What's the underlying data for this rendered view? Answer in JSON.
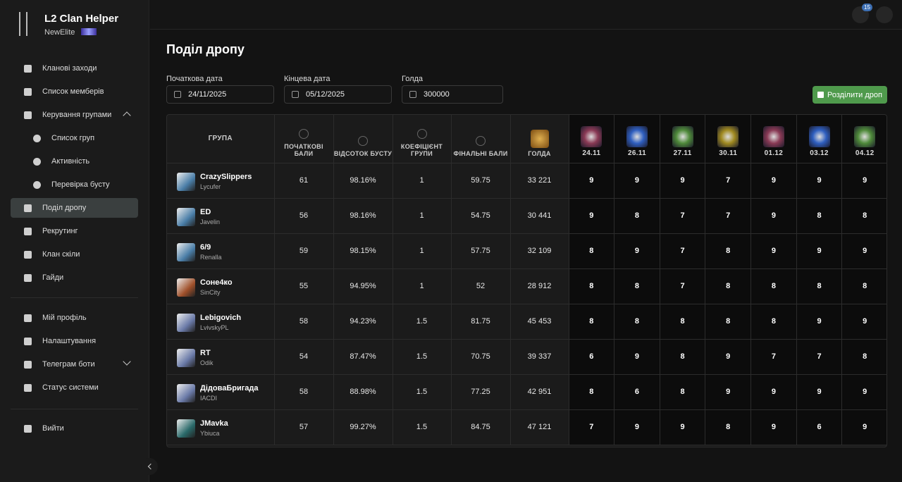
{
  "sidebar": {
    "app_title": "L2 Clan Helper",
    "clan": "NewElite",
    "nav": [
      {
        "label": "Кланові заходи",
        "level": 0
      },
      {
        "label": "Список мемберів",
        "level": 0
      },
      {
        "label": "Керування групами",
        "level": 0,
        "expanded": true
      },
      {
        "label": "Список груп",
        "level": 1
      },
      {
        "label": "Активність",
        "level": 1
      },
      {
        "label": "Перевірка бусту",
        "level": 1
      },
      {
        "label": "Поділ дропу",
        "level": 0,
        "active": true
      },
      {
        "label": "Рекрутинг",
        "level": 0
      },
      {
        "label": "Клан скіли",
        "level": 0
      },
      {
        "label": "Гайди",
        "level": 0
      }
    ],
    "account": [
      {
        "label": "Мій профіль"
      },
      {
        "label": "Налаштування"
      },
      {
        "label": "Телеграм боти",
        "expandable": true
      },
      {
        "label": "Статус системи"
      }
    ],
    "logout": "Вийти"
  },
  "topbar": {
    "notifications": "15"
  },
  "page": {
    "title": "Поділ дропу",
    "filters": [
      {
        "label": "Початкова дата",
        "value": "24/11/2025"
      },
      {
        "label": "Кінцева дата",
        "value": "05/12/2025"
      },
      {
        "label": "Голда",
        "value": "300000"
      }
    ],
    "action": "Розділити дроп"
  },
  "table": {
    "columns": [
      "ГРУПА",
      "ПОЧАТКОВІ БАЛИ",
      "ВІДСОТОК БУСТУ",
      "КОЕФІЦІЄНТ ГРУПИ",
      "ФІНАЛЬНІ БАЛИ",
      "ГОЛДА"
    ],
    "dates": [
      "24.11",
      "26.11",
      "27.11",
      "30.11",
      "01.12",
      "03.12",
      "04.12"
    ],
    "rows": [
      {
        "group": "CrazySlippers",
        "leader": "Lycufer",
        "base": "61",
        "boost": "98.16%",
        "coef": "1",
        "final": "59.75",
        "gold": "33 221",
        "drops": [
          "9",
          "9",
          "9",
          "7",
          "9",
          "9",
          "9"
        ]
      },
      {
        "group": "ED",
        "leader": "Javelin",
        "base": "56",
        "boost": "98.16%",
        "coef": "1",
        "final": "54.75",
        "gold": "30 441",
        "drops": [
          "9",
          "8",
          "7",
          "7",
          "9",
          "8",
          "8"
        ]
      },
      {
        "group": "6/9",
        "leader": "Renalla",
        "base": "59",
        "boost": "98.15%",
        "coef": "1",
        "final": "57.75",
        "gold": "32 109",
        "drops": [
          "8",
          "9",
          "7",
          "8",
          "9",
          "9",
          "9"
        ]
      },
      {
        "group": "Соне4ко",
        "leader": "SinCity",
        "base": "55",
        "boost": "94.95%",
        "coef": "1",
        "final": "52",
        "gold": "28 912",
        "drops": [
          "8",
          "8",
          "7",
          "8",
          "8",
          "8",
          "8"
        ]
      },
      {
        "group": "Lebigovich",
        "leader": "LvivskyPL",
        "base": "58",
        "boost": "94.23%",
        "coef": "1.5",
        "final": "81.75",
        "gold": "45 453",
        "drops": [
          "8",
          "8",
          "8",
          "8",
          "8",
          "9",
          "9"
        ]
      },
      {
        "group": "RT",
        "leader": "Odik",
        "base": "54",
        "boost": "87.47%",
        "coef": "1.5",
        "final": "70.75",
        "gold": "39 337",
        "drops": [
          "6",
          "9",
          "8",
          "9",
          "7",
          "7",
          "8"
        ]
      },
      {
        "group": "ДідоваБригада",
        "leader": "IACDI",
        "base": "58",
        "boost": "88.98%",
        "coef": "1.5",
        "final": "77.25",
        "gold": "42 951",
        "drops": [
          "8",
          "6",
          "8",
          "9",
          "9",
          "9",
          "9"
        ]
      },
      {
        "group": "JMavka",
        "leader": "Ybiuca",
        "base": "57",
        "boost": "99.27%",
        "coef": "1.5",
        "final": "84.75",
        "gold": "47 121",
        "drops": [
          "7",
          "9",
          "9",
          "8",
          "9",
          "6",
          "9"
        ]
      }
    ]
  }
}
